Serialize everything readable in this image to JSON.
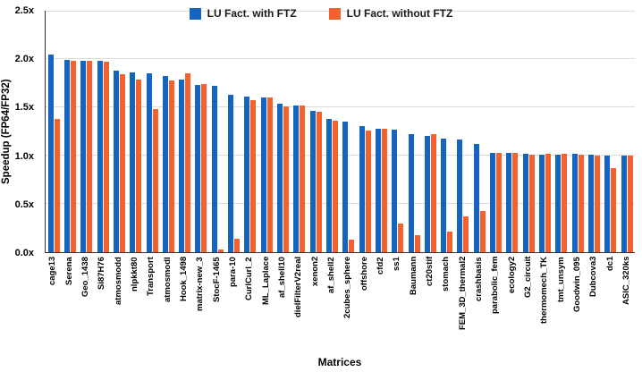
{
  "chart_data": {
    "type": "bar",
    "title": "",
    "xlabel": "Matrices",
    "ylabel": "Speedup (FP64/FP32)",
    "ylim": [
      0,
      2.5
    ],
    "yticks": [
      "0.0x",
      "0.5x",
      "1.0x",
      "1.5x",
      "2.0x",
      "2.5x"
    ],
    "grid": true,
    "legend_position": "top-center",
    "categories": [
      "cage13",
      "Serena",
      "Geo_1438",
      "Si87H76",
      "atmosmodd",
      "nlpkkt80",
      "Transport",
      "atmosmodl",
      "Hook_1498",
      "matrix-new_3",
      "StocF-1465",
      "para-10",
      "CurlCurl_2",
      "ML_Laplace",
      "af_shell10",
      "dielFilterV2real",
      "xenon2",
      "af_shell2",
      "2cubes_sphere",
      "offshore",
      "cfd2",
      "ss1",
      "Baumann",
      "ct20stif",
      "stomach",
      "FEM_3D_thermal2",
      "crashbasis",
      "parabolic_fem",
      "ecology2",
      "G2_circuit",
      "thermomech_TK",
      "tmt_unsym",
      "Goodwin_095",
      "Dubcova3",
      "dc1",
      "ASIC_320ks"
    ],
    "series": [
      {
        "name": "LU Fact. with FTZ",
        "color": "#1565c0",
        "values": [
          2.05,
          1.99,
          1.98,
          1.98,
          1.88,
          1.86,
          1.85,
          1.82,
          1.79,
          1.73,
          1.72,
          1.63,
          1.61,
          1.6,
          1.54,
          1.52,
          1.46,
          1.38,
          1.35,
          1.31,
          1.28,
          1.27,
          1.22,
          1.2,
          1.18,
          1.17,
          1.12,
          1.03,
          1.03,
          1.02,
          1.01,
          1.01,
          1.02,
          1.01,
          1.0,
          1.0
        ]
      },
      {
        "name": "LU Fact. without FTZ",
        "color": "#f4612e",
        "values": [
          1.38,
          1.98,
          1.98,
          1.97,
          1.84,
          1.79,
          1.48,
          1.78,
          1.85,
          1.74,
          0.03,
          0.14,
          1.57,
          1.6,
          1.51,
          1.52,
          1.45,
          1.36,
          0.13,
          1.26,
          1.28,
          0.3,
          0.18,
          1.22,
          0.21,
          0.37,
          0.43,
          1.03,
          1.03,
          1.01,
          1.02,
          1.02,
          1.01,
          1.0,
          0.87,
          1.0
        ]
      }
    ]
  }
}
